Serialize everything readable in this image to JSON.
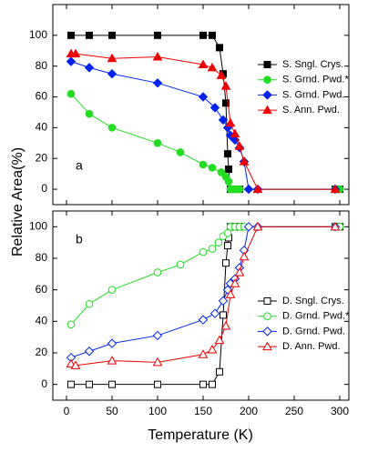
{
  "chart_data": [
    {
      "type": "line",
      "ylabel": "Relative Area(%)",
      "annotation": "a",
      "xlim": [
        -15,
        310
      ],
      "xticks": [
        0,
        50,
        100,
        150,
        200,
        250,
        300
      ],
      "xticklabels": false,
      "ylim": [
        -10,
        120
      ],
      "yticks": [
        0,
        20,
        40,
        60,
        80,
        100
      ],
      "marker_fill": "filled",
      "legend": "center right",
      "series": [
        {
          "name": "S. Sngl. Crys.",
          "color": "#000000",
          "marker": "square",
          "x": [
            5,
            25,
            50,
            100,
            150,
            160,
            168,
            172,
            175,
            177,
            178,
            180,
            185,
            190,
            295,
            300
          ],
          "values": [
            100,
            100,
            100,
            100,
            100,
            100,
            92,
            75,
            56,
            23,
            13,
            0,
            0,
            0,
            0,
            0
          ]
        },
        {
          "name": "S. Grnd. Pwd.*",
          "color": "#22dd22",
          "marker": "circle",
          "x": [
            5,
            25,
            50,
            100,
            125,
            150,
            160,
            170,
            175,
            178,
            180,
            183,
            186,
            190,
            295,
            300
          ],
          "values": [
            62,
            49,
            40,
            30,
            24,
            16,
            14,
            11,
            8,
            5,
            0,
            0,
            0,
            0,
            0,
            0
          ]
        },
        {
          "name": "S. Grnd. Pwd.",
          "color": "#0022ee",
          "marker": "diamond",
          "x": [
            5,
            25,
            50,
            100,
            150,
            163,
            172,
            177,
            180,
            185,
            190,
            195,
            200,
            210,
            295
          ],
          "values": [
            83,
            79,
            75,
            69,
            60,
            53,
            45,
            40,
            35,
            32,
            27,
            18,
            0,
            0,
            0
          ]
        },
        {
          "name": "S. Ann. Pwd.",
          "color": "#ee0000",
          "marker": "triangle",
          "x": [
            5,
            10,
            50,
            100,
            150,
            160,
            170,
            175,
            180,
            185,
            190,
            195,
            210,
            295
          ],
          "values": [
            88,
            88,
            85,
            86,
            81,
            79,
            74,
            67,
            43,
            36,
            28,
            18,
            0,
            0
          ]
        }
      ]
    },
    {
      "type": "line",
      "xlabel": "Temperature (K)",
      "annotation": "b",
      "xlim": [
        -15,
        310
      ],
      "xticks": [
        0,
        50,
        100,
        150,
        200,
        250,
        300
      ],
      "xticklabels": true,
      "ylim": [
        -10,
        110
      ],
      "yticks": [
        0,
        20,
        40,
        60,
        80,
        100
      ],
      "marker_fill": "open",
      "legend": "center right",
      "series": [
        {
          "name": "D. Sngl. Crys.",
          "color": "#000000",
          "marker": "square",
          "x": [
            5,
            25,
            50,
            100,
            150,
            160,
            168,
            172,
            175,
            177,
            178,
            180,
            183,
            186,
            190,
            295,
            300
          ],
          "values": [
            0,
            0,
            0,
            0,
            0,
            0,
            8,
            44,
            77,
            88,
            93,
            100,
            100,
            100,
            100,
            100,
            100
          ]
        },
        {
          "name": "D. Grnd. Pwd.*",
          "color": "#22dd22",
          "marker": "circle",
          "x": [
            5,
            25,
            50,
            100,
            125,
            150,
            160,
            167,
            172,
            177,
            180,
            185,
            190,
            195,
            295,
            300
          ],
          "values": [
            38,
            51,
            60,
            71,
            76,
            84,
            86,
            90,
            94,
            96,
            100,
            100,
            100,
            100,
            100,
            100
          ]
        },
        {
          "name": "D. Grnd. Pwd.",
          "color": "#0022ee",
          "marker": "diamond",
          "x": [
            5,
            25,
            50,
            100,
            150,
            163,
            172,
            177,
            180,
            185,
            190,
            195,
            200,
            210,
            295
          ],
          "values": [
            17,
            21,
            26,
            31,
            41,
            45,
            53,
            60,
            64,
            67,
            74,
            85,
            100,
            100,
            100
          ]
        },
        {
          "name": "D. Ann. Pwd.",
          "color": "#ee0000",
          "marker": "triangle",
          "x": [
            5,
            10,
            50,
            100,
            150,
            160,
            168,
            175,
            180,
            185,
            190,
            195,
            210,
            295
          ],
          "values": [
            13,
            12,
            15,
            14,
            19,
            22,
            28,
            37,
            57,
            64,
            71,
            81,
            100,
            100
          ]
        }
      ]
    }
  ]
}
